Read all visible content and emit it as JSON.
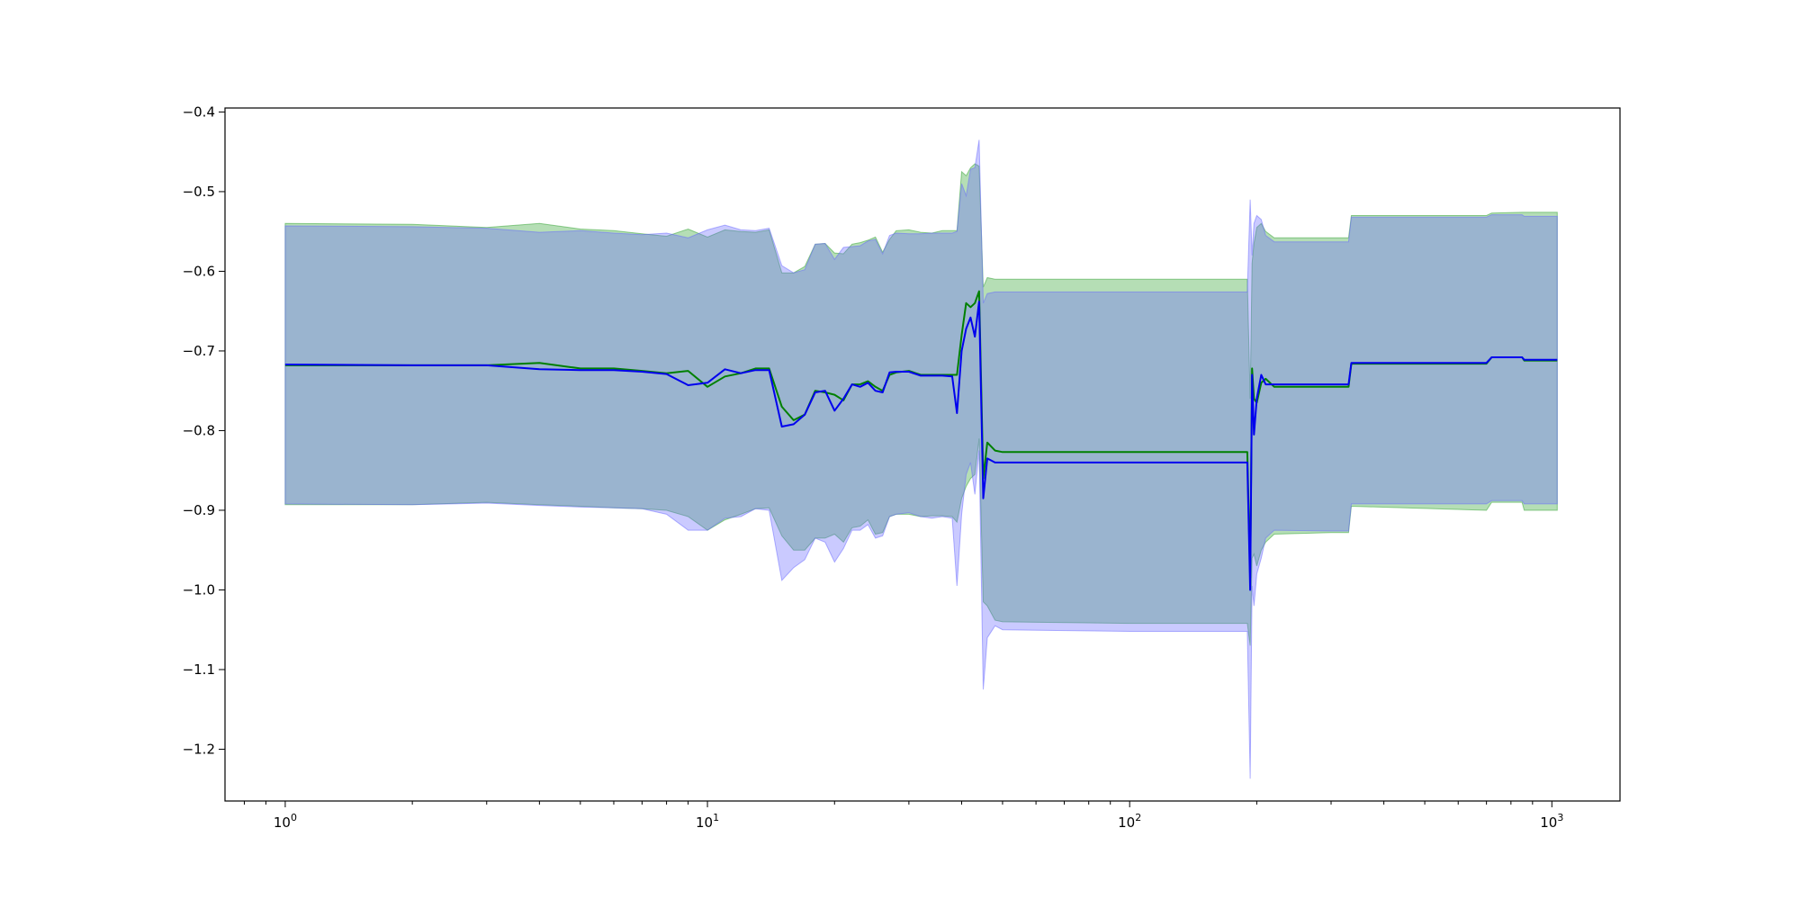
{
  "chart_data": {
    "type": "line",
    "title": "",
    "xlabel": "",
    "ylabel": "",
    "x_scale": "log",
    "xlim": [
      0.72,
      1450
    ],
    "ylim": [
      -1.265,
      -0.395
    ],
    "grid": false,
    "legend": "none",
    "x_ticks": [
      {
        "value": 1,
        "base": "10",
        "exp": "0"
      },
      {
        "value": 10,
        "base": "10",
        "exp": "1"
      },
      {
        "value": 100,
        "base": "10",
        "exp": "2"
      },
      {
        "value": 1000,
        "base": "10",
        "exp": "3"
      }
    ],
    "y_ticks": [
      {
        "value": -0.4,
        "label": "−0.4"
      },
      {
        "value": -0.5,
        "label": "−0.5"
      },
      {
        "value": -0.6,
        "label": "−0.6"
      },
      {
        "value": -0.7,
        "label": "−0.7"
      },
      {
        "value": -0.8,
        "label": "−0.8"
      },
      {
        "value": -0.9,
        "label": "−0.9"
      },
      {
        "value": -1.0,
        "label": "−1.0"
      },
      {
        "value": -1.1,
        "label": "−1.1"
      },
      {
        "value": -1.2,
        "label": "−1.2"
      }
    ],
    "series": [
      {
        "color": "#008000",
        "band_color": "#2ca02c",
        "points": [
          [
            1,
            -0.718,
            -0.54,
            -0.893
          ],
          [
            2,
            -0.718,
            -0.541,
            -0.893
          ],
          [
            3,
            -0.718,
            -0.545,
            -0.89
          ],
          [
            4,
            -0.715,
            -0.54,
            -0.893
          ],
          [
            5,
            -0.722,
            -0.547,
            -0.895
          ],
          [
            6,
            -0.722,
            -0.549,
            -0.897
          ],
          [
            7,
            -0.725,
            -0.553,
            -0.898
          ],
          [
            8,
            -0.728,
            -0.556,
            -0.9
          ],
          [
            9,
            -0.725,
            -0.547,
            -0.908
          ],
          [
            10,
            -0.745,
            -0.557,
            -0.925
          ],
          [
            11,
            -0.732,
            -0.548,
            -0.912
          ],
          [
            12,
            -0.728,
            -0.55,
            -0.905
          ],
          [
            13,
            -0.722,
            -0.551,
            -0.898
          ],
          [
            14,
            -0.722,
            -0.548,
            -0.897
          ],
          [
            15,
            -0.77,
            -0.602,
            -0.932
          ],
          [
            16,
            -0.787,
            -0.602,
            -0.95
          ],
          [
            17,
            -0.78,
            -0.594,
            -0.95
          ],
          [
            18,
            -0.75,
            -0.566,
            -0.935
          ],
          [
            19,
            -0.752,
            -0.565,
            -0.935
          ],
          [
            20,
            -0.755,
            -0.577,
            -0.93
          ],
          [
            21,
            -0.762,
            -0.578,
            -0.94
          ],
          [
            22,
            -0.742,
            -0.566,
            -0.922
          ],
          [
            23,
            -0.742,
            -0.564,
            -0.92
          ],
          [
            24,
            -0.738,
            -0.561,
            -0.912
          ],
          [
            25,
            -0.745,
            -0.557,
            -0.93
          ],
          [
            26,
            -0.75,
            -0.576,
            -0.928
          ],
          [
            27,
            -0.73,
            -0.56,
            -0.908
          ],
          [
            28,
            -0.727,
            -0.549,
            -0.905
          ],
          [
            30,
            -0.725,
            -0.548,
            -0.905
          ],
          [
            32,
            -0.73,
            -0.551,
            -0.908
          ],
          [
            34,
            -0.73,
            -0.552,
            -0.907
          ],
          [
            36,
            -0.73,
            -0.549,
            -0.907
          ],
          [
            38,
            -0.73,
            -0.549,
            -0.908
          ],
          [
            39,
            -0.73,
            -0.549,
            -0.915
          ],
          [
            40,
            -0.68,
            -0.475,
            -0.885
          ],
          [
            41,
            -0.64,
            -0.48,
            -0.87
          ],
          [
            42,
            -0.645,
            -0.47,
            -0.86
          ],
          [
            43,
            -0.64,
            -0.465,
            -0.855
          ],
          [
            44,
            -0.625,
            -0.468,
            -0.81
          ],
          [
            45,
            -0.86,
            -0.62,
            -1.015
          ],
          [
            46,
            -0.815,
            -0.608,
            -1.02
          ],
          [
            48,
            -0.825,
            -0.61,
            -1.038
          ],
          [
            50,
            -0.827,
            -0.61,
            -1.04
          ],
          [
            100,
            -0.827,
            -0.61,
            -1.042
          ],
          [
            190,
            -0.827,
            -0.61,
            -1.042
          ],
          [
            193,
            -0.985,
            -0.76,
            -1.07
          ],
          [
            195,
            -0.722,
            -0.59,
            -0.96
          ],
          [
            197,
            -0.76,
            -0.565,
            -0.955
          ],
          [
            200,
            -0.765,
            -0.545,
            -0.97
          ],
          [
            205,
            -0.74,
            -0.54,
            -0.95
          ],
          [
            210,
            -0.735,
            -0.55,
            -0.94
          ],
          [
            220,
            -0.745,
            -0.558,
            -0.93
          ],
          [
            300,
            -0.745,
            -0.558,
            -0.928
          ],
          [
            330,
            -0.745,
            -0.558,
            -0.928
          ],
          [
            335,
            -0.716,
            -0.53,
            -0.895
          ],
          [
            700,
            -0.716,
            -0.53,
            -0.9
          ],
          [
            720,
            -0.708,
            -0.527,
            -0.89
          ],
          [
            850,
            -0.708,
            -0.526,
            -0.89
          ],
          [
            860,
            -0.712,
            -0.526,
            -0.9
          ],
          [
            1030,
            -0.712,
            -0.526,
            -0.9
          ]
        ]
      },
      {
        "color": "#0000ee",
        "band_color": "#6666ff",
        "points": [
          [
            1,
            -0.717,
            -0.543,
            -0.892
          ],
          [
            2,
            -0.718,
            -0.544,
            -0.893
          ],
          [
            3,
            -0.718,
            -0.546,
            -0.891
          ],
          [
            4,
            -0.723,
            -0.551,
            -0.894
          ],
          [
            5,
            -0.724,
            -0.549,
            -0.896
          ],
          [
            6,
            -0.724,
            -0.552,
            -0.897
          ],
          [
            7,
            -0.726,
            -0.554,
            -0.898
          ],
          [
            8,
            -0.729,
            -0.552,
            -0.905
          ],
          [
            9,
            -0.743,
            -0.558,
            -0.925
          ],
          [
            10,
            -0.74,
            -0.548,
            -0.925
          ],
          [
            11,
            -0.723,
            -0.542,
            -0.91
          ],
          [
            12,
            -0.728,
            -0.548,
            -0.908
          ],
          [
            13,
            -0.724,
            -0.549,
            -0.898
          ],
          [
            14,
            -0.724,
            -0.546,
            -0.9
          ],
          [
            15,
            -0.795,
            -0.593,
            -0.988
          ],
          [
            16,
            -0.792,
            -0.602,
            -0.972
          ],
          [
            17,
            -0.78,
            -0.598,
            -0.962
          ],
          [
            18,
            -0.752,
            -0.566,
            -0.935
          ],
          [
            19,
            -0.75,
            -0.565,
            -0.94
          ],
          [
            20,
            -0.775,
            -0.585,
            -0.965
          ],
          [
            21,
            -0.76,
            -0.57,
            -0.948
          ],
          [
            22,
            -0.742,
            -0.569,
            -0.925
          ],
          [
            23,
            -0.745,
            -0.568,
            -0.925
          ],
          [
            24,
            -0.74,
            -0.562,
            -0.918
          ],
          [
            25,
            -0.75,
            -0.56,
            -0.935
          ],
          [
            26,
            -0.752,
            -0.578,
            -0.932
          ],
          [
            27,
            -0.727,
            -0.555,
            -0.908
          ],
          [
            28,
            -0.726,
            -0.552,
            -0.905
          ],
          [
            30,
            -0.726,
            -0.553,
            -0.903
          ],
          [
            32,
            -0.731,
            -0.553,
            -0.908
          ],
          [
            34,
            -0.731,
            -0.552,
            -0.91
          ],
          [
            36,
            -0.731,
            -0.552,
            -0.908
          ],
          [
            38,
            -0.732,
            -0.552,
            -0.91
          ],
          [
            39,
            -0.778,
            -0.55,
            -0.995
          ],
          [
            40,
            -0.7,
            -0.49,
            -0.905
          ],
          [
            41,
            -0.672,
            -0.505,
            -0.855
          ],
          [
            42,
            -0.658,
            -0.472,
            -0.84
          ],
          [
            43,
            -0.682,
            -0.47,
            -0.88
          ],
          [
            44,
            -0.638,
            -0.435,
            -0.825
          ],
          [
            45,
            -0.885,
            -0.64,
            -1.125
          ],
          [
            46,
            -0.835,
            -0.628,
            -1.06
          ],
          [
            48,
            -0.84,
            -0.626,
            -1.045
          ],
          [
            50,
            -0.84,
            -0.626,
            -1.05
          ],
          [
            100,
            -0.84,
            -0.626,
            -1.052
          ],
          [
            190,
            -0.84,
            -0.626,
            -1.052
          ],
          [
            193,
            -1.0,
            -0.51,
            -1.237
          ],
          [
            195,
            -0.73,
            -0.58,
            -0.995
          ],
          [
            197,
            -0.805,
            -0.54,
            -1.02
          ],
          [
            200,
            -0.76,
            -0.53,
            -0.98
          ],
          [
            205,
            -0.73,
            -0.535,
            -0.96
          ],
          [
            210,
            -0.742,
            -0.555,
            -0.935
          ],
          [
            220,
            -0.742,
            -0.563,
            -0.925
          ],
          [
            300,
            -0.742,
            -0.563,
            -0.926
          ],
          [
            330,
            -0.742,
            -0.563,
            -0.926
          ],
          [
            335,
            -0.715,
            -0.532,
            -0.892
          ],
          [
            700,
            -0.715,
            -0.532,
            -0.892
          ],
          [
            720,
            -0.708,
            -0.529,
            -0.888
          ],
          [
            850,
            -0.708,
            -0.529,
            -0.888
          ],
          [
            860,
            -0.711,
            -0.531,
            -0.892
          ],
          [
            1030,
            -0.711,
            -0.531,
            -0.892
          ]
        ]
      }
    ]
  }
}
